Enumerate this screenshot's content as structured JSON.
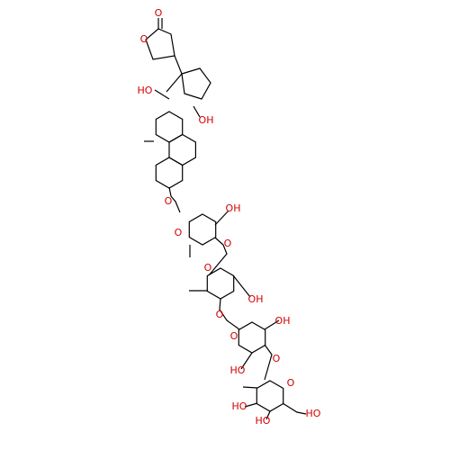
{
  "nodes": [
    {
      "label": "O"
    },
    {
      "label": "O"
    },
    {
      "label": "HO"
    },
    {
      "label": "OH"
    },
    {
      "label": "O"
    },
    {
      "label": "OH"
    },
    {
      "label": "O"
    },
    {
      "label": "O"
    },
    {
      "label": "O"
    },
    {
      "label": "OH"
    },
    {
      "label": "O"
    },
    {
      "label": "O"
    },
    {
      "label": "OH"
    },
    {
      "label": "O"
    },
    {
      "label": "HO"
    },
    {
      "label": "O"
    },
    {
      "label": "HO"
    },
    {
      "label": "HO"
    },
    {
      "label": "HO"
    }
  ]
}
